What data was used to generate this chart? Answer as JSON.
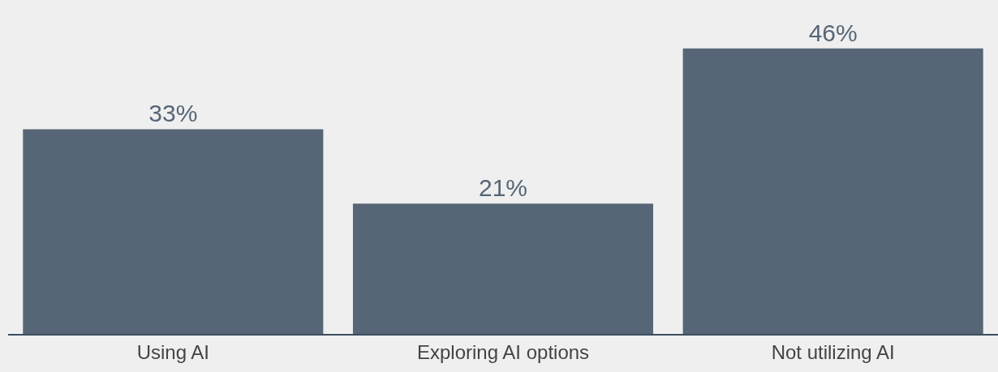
{
  "chart_data": {
    "type": "bar",
    "categories": [
      "Using AI",
      "Exploring AI options",
      "Not utilizing AI"
    ],
    "values": [
      33,
      21,
      46
    ],
    "value_labels": [
      "33%",
      "21%",
      "46%"
    ],
    "color": "#566676",
    "grid": false,
    "legend": false
  }
}
